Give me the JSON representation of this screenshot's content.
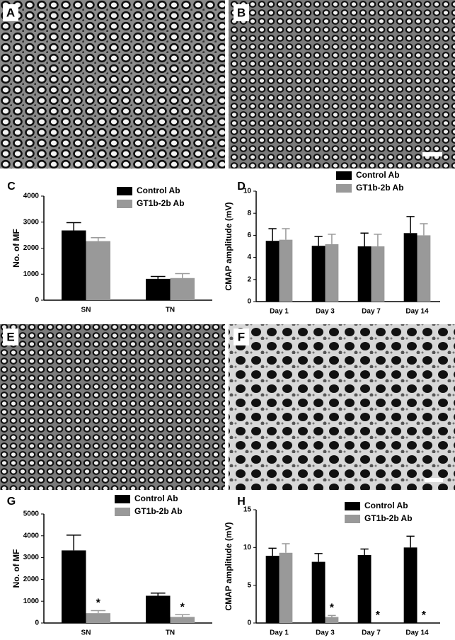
{
  "image_panels": [
    {
      "label": "A"
    },
    {
      "label": "B"
    },
    {
      "label": "E"
    },
    {
      "label": "F"
    }
  ],
  "chart_data": [
    {
      "type": "bar",
      "panel": "C",
      "y_label": "No. of MF",
      "categories": [
        "SN",
        "TN"
      ],
      "series": [
        {
          "name": "Control Ab",
          "color": "#000000",
          "values": [
            2680,
            820
          ],
          "errors": [
            300,
            90
          ]
        },
        {
          "name": "GT1b-2b Ab",
          "color": "#999999",
          "values": [
            2270,
            850
          ],
          "errors": [
            130,
            170
          ]
        }
      ],
      "ylim": [
        0,
        4000
      ],
      "yticks": [
        0,
        1000,
        2000,
        3000,
        4000
      ]
    },
    {
      "type": "bar",
      "panel": "D",
      "y_label": "CMAP amplitude (mV)",
      "categories": [
        "Day 1",
        "Day 3",
        "Day 7",
        "Day 14"
      ],
      "series": [
        {
          "name": "Control Ab",
          "color": "#000000",
          "values": [
            5.5,
            5.05,
            5.0,
            6.2
          ],
          "errors": [
            1.1,
            0.85,
            1.2,
            1.5
          ]
        },
        {
          "name": "GT1b-2b Ab",
          "color": "#999999",
          "values": [
            5.6,
            5.2,
            5.0,
            6.0
          ],
          "errors": [
            1.0,
            0.9,
            1.1,
            1.05
          ]
        }
      ],
      "ylim": [
        0,
        10
      ],
      "yticks": [
        0,
        2,
        4,
        6,
        8,
        10
      ]
    },
    {
      "type": "bar",
      "panel": "G",
      "y_label": "No. of MF",
      "categories": [
        "SN",
        "TN"
      ],
      "series": [
        {
          "name": "Control Ab",
          "color": "#000000",
          "values": [
            3330,
            1250
          ],
          "errors": [
            700,
            120
          ]
        },
        {
          "name": "GT1b-2b Ab",
          "color": "#999999",
          "values": [
            450,
            280
          ],
          "errors": [
            120,
            100
          ],
          "annotations": [
            "*",
            "*"
          ]
        }
      ],
      "ylim": [
        0,
        5000
      ],
      "yticks": [
        0,
        1000,
        2000,
        3000,
        4000,
        5000
      ]
    },
    {
      "type": "bar",
      "panel": "H",
      "y_label": "CMAP amplitude (mV)",
      "categories": [
        "Day 1",
        "Day 3",
        "Day 7",
        "Day 14"
      ],
      "series": [
        {
          "name": "Control Ab",
          "color": "#000000",
          "values": [
            8.9,
            8.1,
            9.0,
            10.0
          ],
          "errors": [
            1.0,
            1.1,
            0.8,
            1.5
          ]
        },
        {
          "name": "GT1b-2b Ab",
          "color": "#999999",
          "values": [
            9.3,
            0.8,
            0,
            0
          ],
          "errors": [
            1.2,
            0.2,
            null,
            null
          ],
          "annotations": [
            null,
            "*",
            "*",
            "*"
          ]
        }
      ],
      "ylim": [
        0,
        15
      ],
      "yticks": [
        0,
        5,
        10,
        15
      ]
    }
  ]
}
